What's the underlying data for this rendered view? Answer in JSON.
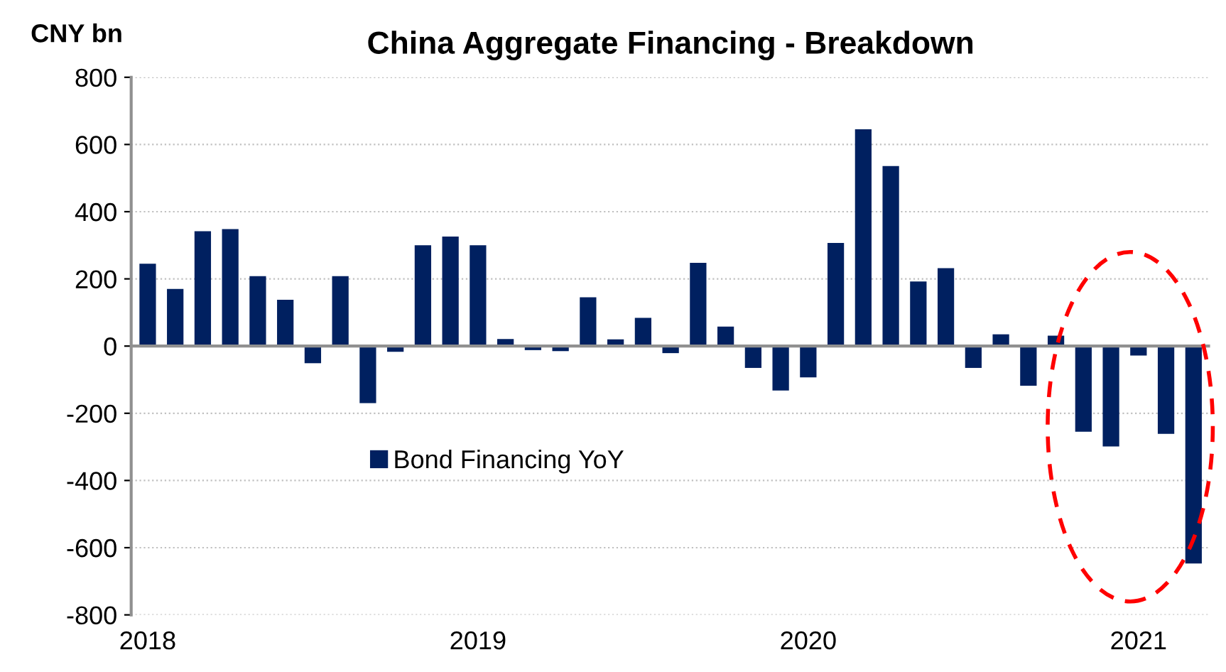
{
  "chart_data": {
    "type": "bar",
    "title": "China Aggregate Financing - Breakdown",
    "ylabel": "CNY bn",
    "categories": [
      "2018",
      null,
      null,
      null,
      null,
      null,
      null,
      null,
      null,
      null,
      null,
      null,
      "2019",
      null,
      null,
      null,
      null,
      null,
      null,
      null,
      null,
      null,
      null,
      null,
      "2020",
      null,
      null,
      null,
      null,
      null,
      null,
      null,
      null,
      null,
      null,
      null,
      "2021",
      null,
      null
    ],
    "series": [
      {
        "name": "Bond Financing YoY",
        "color": "#002060",
        "values": [
          245,
          170,
          342,
          348,
          208,
          138,
          -51,
          208,
          -170,
          -17,
          300,
          326,
          300,
          21,
          -12,
          -15,
          145,
          20,
          84,
          -21,
          248,
          58,
          -65,
          -132,
          -93,
          307,
          645,
          536,
          192,
          232,
          -65,
          35,
          -118,
          31,
          -255,
          -299,
          -28,
          -261,
          -647
        ]
      }
    ],
    "ylim": [
      -800,
      800
    ],
    "yticks": [
      -800,
      -600,
      -400,
      -200,
      0,
      200,
      400,
      600,
      800
    ],
    "grid": "y",
    "legend": "bottom left"
  }
}
